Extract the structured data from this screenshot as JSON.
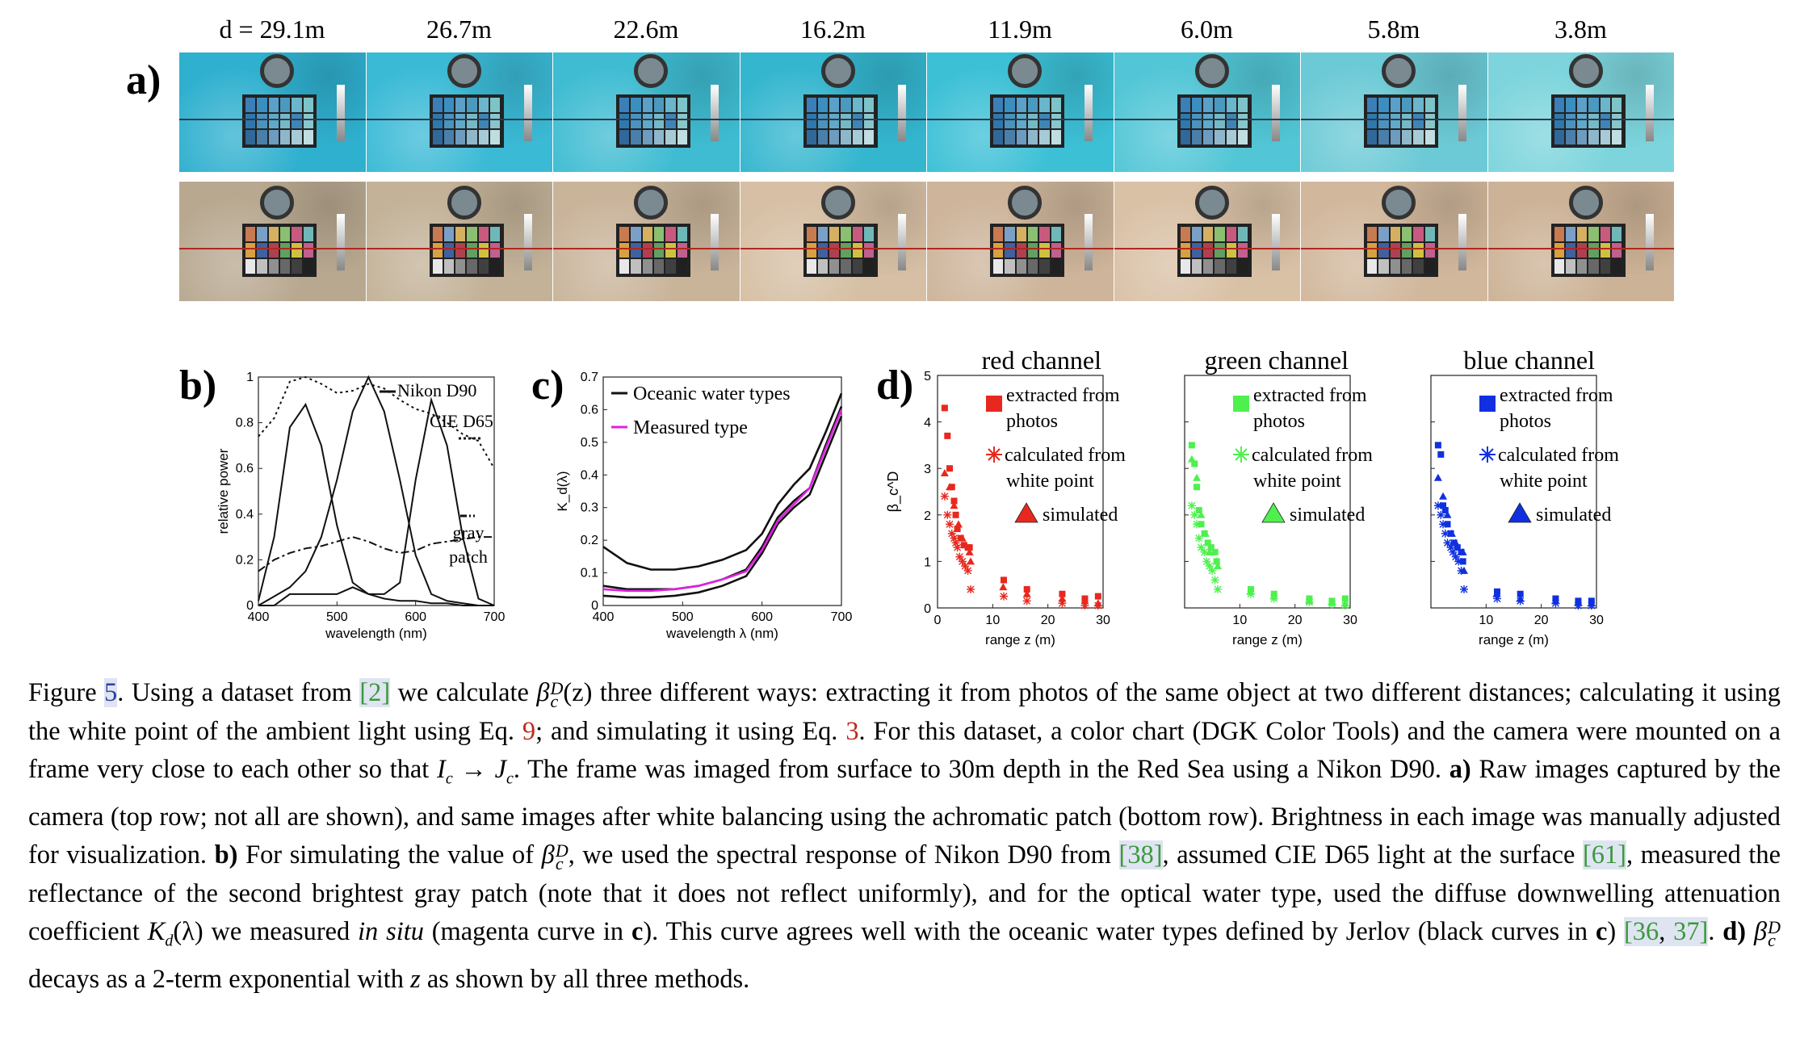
{
  "figure": {
    "panel_a": {
      "label": "a)",
      "distances": [
        "d = 29.1m",
        "26.7m",
        "22.6m",
        "16.2m",
        "11.9m",
        "6.0m",
        "5.8m",
        "3.8m"
      ],
      "raw_tints": [
        "#2fb0cf",
        "#3bbad6",
        "#3fbcd2",
        "#34b6cf",
        "#3cc0d6",
        "#52c6d6",
        "#6ccad6",
        "#7dd4dc"
      ],
      "wb_tints": [
        "#b8a890",
        "#c3b298",
        "#c9b49a",
        "#d6bfa4",
        "#cdb49a",
        "#d9c1a6",
        "#d1b79c",
        "#ccb296"
      ]
    },
    "panel_b": {
      "label": "b)",
      "legend": [
        "Nikon D90",
        "CIE D65",
        "gray",
        "patch"
      ],
      "xlabel": "wavelength (nm)",
      "ylabel": "relative power",
      "xticks": [
        "400",
        "500",
        "600",
        "700"
      ],
      "yticks": [
        "0",
        "0.2",
        "0.4",
        "0.6",
        "0.8",
        "1"
      ]
    },
    "panel_c": {
      "label": "c)",
      "legend": [
        "Oceanic water types",
        "Measured type"
      ],
      "xlabel": "wavelength λ (nm)",
      "ylabel": "K_d(λ)",
      "xticks": [
        "400",
        "500",
        "600",
        "700"
      ],
      "yticks": [
        "0",
        "0.1",
        "0.2",
        "0.3",
        "0.4",
        "0.5",
        "0.6",
        "0.7"
      ]
    },
    "panel_d": {
      "label": "d)",
      "ylabel": "β_c^D",
      "xlabel": "range z (m)",
      "xticks": [
        "0",
        "10",
        "20",
        "30"
      ],
      "yticks": [
        "0",
        "1",
        "2",
        "3",
        "4",
        "5"
      ],
      "channels": [
        {
          "title": "red channel",
          "color": "#e8281e"
        },
        {
          "title": "green channel",
          "color": "#4ef04e"
        },
        {
          "title": "blue channel",
          "color": "#1030e0"
        }
      ],
      "legend": {
        "extracted": [
          "extracted from",
          "photos"
        ],
        "calculated": [
          "calculated from",
          "white point"
        ],
        "simulated": "simulated"
      }
    }
  },
  "chart_data": [
    {
      "type": "line",
      "title": "",
      "xlabel": "wavelength (nm)",
      "ylabel": "relative power",
      "xlim": [
        400,
        700
      ],
      "ylim": [
        0,
        1
      ],
      "x": [
        400,
        420,
        440,
        460,
        480,
        500,
        520,
        540,
        560,
        580,
        600,
        620,
        640,
        660,
        680,
        700
      ],
      "series": [
        {
          "name": "Nikon D90 (blue)",
          "values": [
            0.02,
            0.3,
            0.78,
            0.88,
            0.7,
            0.35,
            0.1,
            0.05,
            0.03,
            0.02,
            0.02,
            0.01,
            0.01,
            0.0,
            0.0,
            0.0
          ]
        },
        {
          "name": "Nikon D90 (green)",
          "values": [
            0.0,
            0.04,
            0.08,
            0.15,
            0.3,
            0.55,
            0.85,
            1.0,
            0.85,
            0.55,
            0.22,
            0.05,
            0.02,
            0.01,
            0.0,
            0.0
          ]
        },
        {
          "name": "Nikon D90 (red)",
          "values": [
            0.0,
            0.0,
            0.05,
            0.05,
            0.05,
            0.05,
            0.08,
            0.05,
            0.05,
            0.1,
            0.55,
            0.9,
            0.7,
            0.3,
            0.03,
            0.0
          ]
        },
        {
          "name": "CIE D65",
          "values": [
            0.74,
            0.82,
            0.98,
            1.0,
            0.97,
            0.93,
            0.94,
            0.97,
            0.95,
            0.9,
            0.86,
            0.84,
            0.8,
            0.75,
            0.72,
            0.6
          ]
        },
        {
          "name": "gray patch",
          "values": [
            0.15,
            0.2,
            0.23,
            0.25,
            0.26,
            0.28,
            0.3,
            0.28,
            0.25,
            0.23,
            0.24,
            0.27,
            0.28,
            0.29,
            0.3,
            0.3
          ]
        }
      ]
    },
    {
      "type": "line",
      "title": "",
      "xlabel": "wavelength λ (nm)",
      "ylabel": "K_d(λ)",
      "xlim": [
        400,
        700
      ],
      "ylim": [
        0,
        0.7
      ],
      "x": [
        400,
        430,
        460,
        490,
        520,
        550,
        580,
        600,
        620,
        640,
        660,
        680,
        700
      ],
      "series": [
        {
          "name": "Oceanic water types",
          "values": [
            0.18,
            0.13,
            0.11,
            0.11,
            0.12,
            0.14,
            0.17,
            0.22,
            0.31,
            0.37,
            0.42,
            0.53,
            0.65
          ]
        },
        {
          "name": "Oceanic water types 2",
          "values": [
            0.06,
            0.05,
            0.05,
            0.05,
            0.06,
            0.08,
            0.11,
            0.18,
            0.27,
            0.32,
            0.36,
            0.49,
            0.61
          ]
        },
        {
          "name": "Oceanic water types 3",
          "values": [
            0.03,
            0.025,
            0.025,
            0.03,
            0.04,
            0.06,
            0.09,
            0.16,
            0.25,
            0.3,
            0.34,
            0.46,
            0.58
          ]
        },
        {
          "name": "Measured type",
          "values": [
            0.05,
            0.045,
            0.045,
            0.05,
            0.06,
            0.08,
            0.105,
            0.17,
            0.26,
            0.31,
            0.36,
            0.48,
            0.6
          ]
        }
      ]
    },
    {
      "type": "scatter",
      "title": "red channel",
      "xlabel": "range z (m)",
      "ylabel": "β_c^D",
      "xlim": [
        0,
        30
      ],
      "ylim": [
        0,
        5
      ],
      "series": [
        {
          "name": "extracted from photos",
          "marker": "square",
          "x": [
            1.3,
            1.8,
            2.2,
            2.6,
            3.0,
            3.3,
            3.6,
            4.2,
            4.8,
            5.5,
            5.8,
            12,
            16.2,
            22.6,
            26.7,
            29.1
          ],
          "y": [
            4.3,
            3.7,
            3.0,
            2.6,
            2.3,
            2.0,
            1.7,
            1.5,
            1.35,
            1.3,
            1.3,
            0.6,
            0.4,
            0.3,
            0.2,
            0.25
          ]
        },
        {
          "name": "calculated from white point",
          "marker": "asterisk",
          "x": [
            1.3,
            1.8,
            2.2,
            2.6,
            3.0,
            3.3,
            3.6,
            4.0,
            4.5,
            5.0,
            5.5,
            6.0,
            12,
            16.2,
            22.6,
            26.7,
            29.1
          ],
          "y": [
            2.4,
            2.0,
            1.8,
            1.6,
            1.5,
            1.4,
            1.3,
            1.1,
            1.0,
            0.9,
            0.8,
            0.4,
            0.25,
            0.15,
            0.1,
            0.05,
            0.05
          ]
        },
        {
          "name": "simulated",
          "marker": "triangle",
          "x": [
            1.3,
            2.2,
            3.0,
            3.8,
            4.5,
            5.8,
            6.0,
            11.9,
            16.2,
            22.6,
            26.7,
            29.1
          ],
          "y": [
            2.9,
            2.6,
            2.2,
            1.8,
            1.5,
            1.2,
            1.0,
            0.45,
            0.3,
            0.2,
            0.15,
            0.1
          ]
        }
      ]
    },
    {
      "type": "scatter",
      "title": "green channel",
      "xlabel": "range z (m)",
      "xlim": [
        0,
        30
      ],
      "ylim": [
        0,
        5
      ],
      "series": [
        {
          "name": "extracted from photos",
          "marker": "square",
          "x": [
            1.3,
            1.8,
            2.2,
            2.6,
            3.0,
            3.6,
            4.2,
            4.8,
            5.5,
            5.8,
            12,
            16.2,
            22.6,
            26.7,
            29.1
          ],
          "y": [
            3.5,
            3.1,
            2.6,
            2.1,
            1.8,
            1.6,
            1.4,
            1.3,
            1.2,
            1.0,
            0.4,
            0.3,
            0.2,
            0.15,
            0.2
          ]
        },
        {
          "name": "calculated from white point",
          "marker": "asterisk",
          "x": [
            1.3,
            1.8,
            2.2,
            2.6,
            3.0,
            3.6,
            4.0,
            4.5,
            5.0,
            5.5,
            6.0,
            12,
            16.2,
            22.6,
            26.7,
            29.1
          ],
          "y": [
            2.2,
            2.0,
            1.8,
            1.5,
            1.3,
            1.2,
            1.0,
            0.9,
            0.8,
            0.6,
            0.4,
            0.3,
            0.2,
            0.12,
            0.08,
            0.05
          ]
        },
        {
          "name": "simulated",
          "marker": "triangle",
          "x": [
            1.3,
            2.2,
            3.0,
            3.8,
            4.5,
            5.8,
            6.0,
            11.9,
            16.2,
            22.6,
            26.7,
            29.1
          ],
          "y": [
            3.2,
            2.8,
            2.0,
            1.6,
            1.2,
            1.0,
            0.9,
            0.35,
            0.25,
            0.15,
            0.12,
            0.1
          ]
        }
      ]
    },
    {
      "type": "scatter",
      "title": "blue channel",
      "xlabel": "range z (m)",
      "xlim": [
        0,
        30
      ],
      "ylim": [
        0,
        5
      ],
      "series": [
        {
          "name": "extracted from photos",
          "marker": "square",
          "x": [
            1.3,
            1.8,
            2.2,
            2.6,
            3.0,
            3.6,
            4.2,
            4.8,
            5.5,
            5.8,
            12,
            16.2,
            22.6,
            26.7,
            29.1
          ],
          "y": [
            3.5,
            3.3,
            2.2,
            2.1,
            1.8,
            1.6,
            1.4,
            1.3,
            1.2,
            1.0,
            0.35,
            0.3,
            0.2,
            0.15,
            0.15
          ]
        },
        {
          "name": "calculated from white point",
          "marker": "asterisk",
          "x": [
            1.3,
            1.8,
            2.2,
            2.6,
            3.0,
            3.6,
            4.0,
            4.5,
            5.0,
            5.5,
            6.0,
            12,
            16.2,
            22.6,
            26.7,
            29.1
          ],
          "y": [
            2.2,
            2.0,
            1.8,
            1.6,
            1.4,
            1.3,
            1.2,
            1.1,
            1.0,
            0.8,
            0.4,
            0.2,
            0.15,
            0.1,
            0.05,
            0.05
          ]
        },
        {
          "name": "simulated",
          "marker": "triangle",
          "x": [
            1.3,
            2.2,
            3.0,
            3.8,
            4.5,
            5.8,
            6.0,
            11.9,
            16.2,
            22.6,
            26.7,
            29.1
          ],
          "y": [
            2.8,
            2.4,
            2.0,
            1.6,
            1.4,
            1.2,
            0.8,
            0.3,
            0.2,
            0.15,
            0.12,
            0.1
          ]
        }
      ]
    }
  ],
  "caption": {
    "p1": "Figure ",
    "fig_ref": "5",
    "p2": ". Using a dataset from ",
    "ref_2": "[2]",
    "p3": " we calculate ",
    "beta": "β",
    "beta_sub": "c",
    "beta_sup": "D",
    "p4": "(z) three different ways: extracting it from photos of the same object at two different distances; calculating it using the white point of the ambient light using Eq. ",
    "eq9": "9",
    "p5": "; and simulating it using Eq. ",
    "eq3": "3",
    "p6": ". For this dataset, a color chart (DGK Color Tools) and the camera were mounted on a frame very close to each other so that ",
    "ic": "I",
    "ic_sub": "c",
    "arrow": " → ",
    "jc": "J",
    "jc_sub": "c",
    "p7": ". The frame was imaged from surface to 30m depth in the Red Sea using a Nikon D90. ",
    "a_bold": "a)",
    "p8": " Raw images captured by the camera (top row; not all are shown), and same images after white balancing using the achromatic patch (bottom row). Brightness in each image was manually adjusted for visualization. ",
    "b_bold": "b)",
    "p9": " For simulating the value of ",
    "p10": ", we used the spectral response of Nikon D90 from ",
    "ref_38": "[38]",
    "p11": ", assumed CIE D65 light at the surface ",
    "ref_61": "[61]",
    "p12": ", measured the reflectance of the second brightest gray patch (note that it does not reflect uniformly), and for the optical water type, used the diffuse downwelling attenuation coefficient ",
    "kd": "K",
    "kd_sub": "d",
    "kd_arg": "(λ)",
    "p13": " we measured ",
    "insitu": "in situ",
    "p14": " (magenta curve in ",
    "c_bold": "c",
    "p15": "). This curve agrees well with the oceanic water types defined by Jerlov (black curves in ",
    "c_bold2": "c",
    "p16": ") ",
    "ref_36": "[36",
    "ref_comma": ", ",
    "ref_37": "37]",
    "p17": ". ",
    "d_bold": "d)",
    "p18": " ",
    "p19": " decays as a 2-term exponential with ",
    "z": "z",
    "p20": " as shown by all three methods."
  }
}
